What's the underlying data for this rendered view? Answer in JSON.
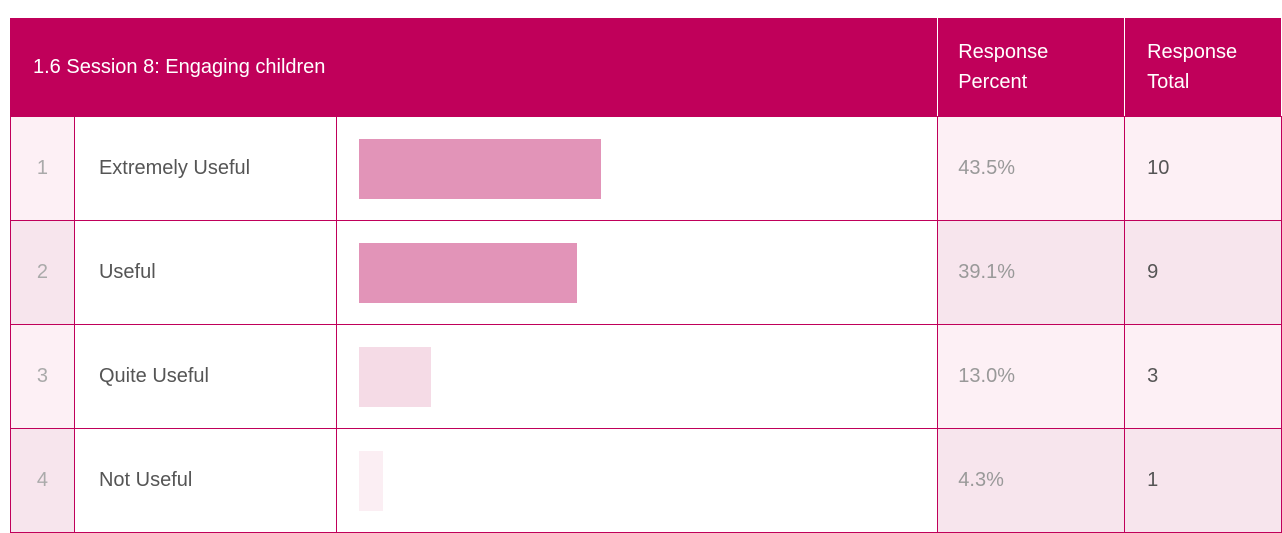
{
  "table": {
    "title": "1.6 Session 8: Engaging children",
    "percent_header": "Response Percent",
    "total_header": "Response Total",
    "rows": [
      {
        "index": "1",
        "label": "Extremely Useful",
        "percent": 43.5,
        "percent_label": "43.5%",
        "total": 10,
        "bar_color": "#e294b8",
        "shade": "#fdf0f5"
      },
      {
        "index": "2",
        "label": "Useful",
        "percent": 39.1,
        "percent_label": "39.1%",
        "total": 9,
        "bar_color": "#e294b8",
        "shade": "#f7e5ed"
      },
      {
        "index": "3",
        "label": "Quite Useful",
        "percent": 13.0,
        "percent_label": "13.0%",
        "total": 3,
        "bar_color": "#f5dbe6",
        "shade": "#fdf0f5"
      },
      {
        "index": "4",
        "label": "Not Useful",
        "percent": 4.3,
        "percent_label": "4.3%",
        "total": 1,
        "bar_color": "#fbeef3",
        "shade": "#f7e5ed"
      }
    ]
  }
}
